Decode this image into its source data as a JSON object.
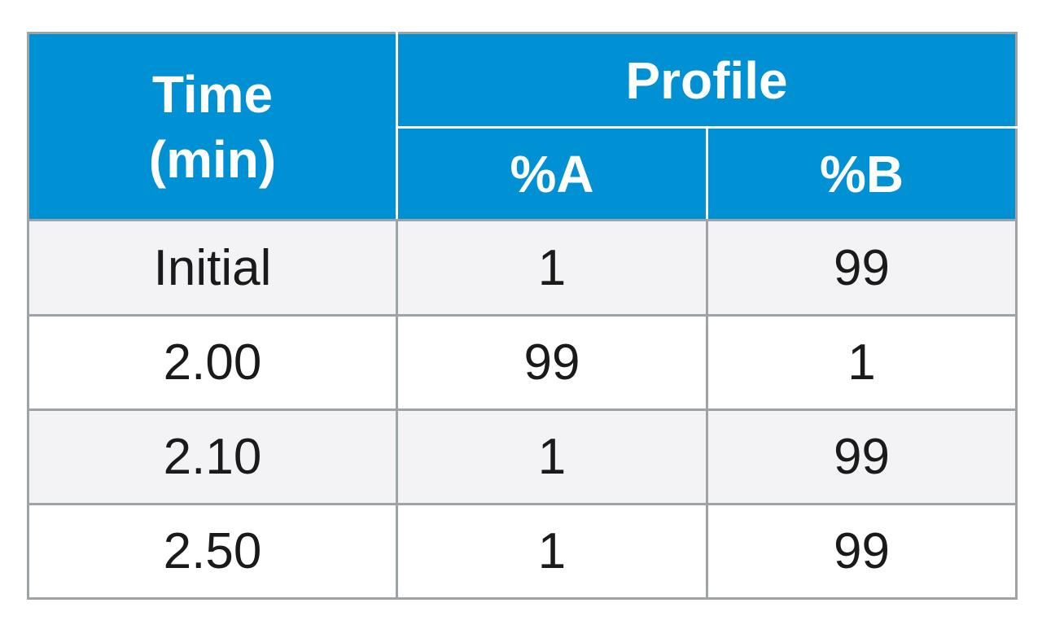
{
  "table": {
    "header": {
      "time_line1": "Time",
      "time_line2": "(min)",
      "profile": "Profile",
      "col_a": "%A",
      "col_b": "%B"
    },
    "rows": [
      {
        "time": "Initial",
        "a": "1",
        "b": "99"
      },
      {
        "time": "2.00",
        "a": "99",
        "b": "1"
      },
      {
        "time": "2.10",
        "a": "1",
        "b": "99"
      },
      {
        "time": "2.50",
        "a": "1",
        "b": "99"
      }
    ],
    "colors": {
      "header_bg": "#0090d4",
      "header_text": "#ffffff",
      "stripe_bg": "#f3f3f5",
      "body_text": "#1a1a1a",
      "border": "#9ea3a8"
    }
  }
}
